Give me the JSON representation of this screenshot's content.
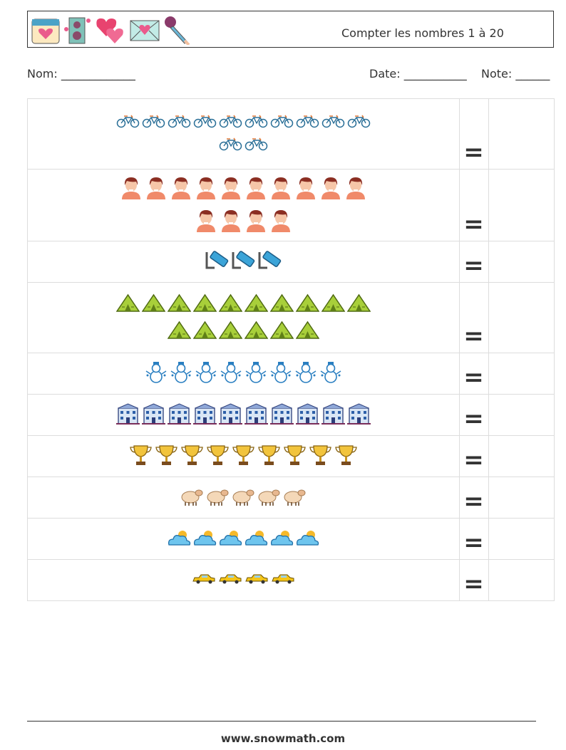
{
  "header": {
    "title": "Compter les nombres 1 à 20",
    "icons": [
      "calendar-heart-icon",
      "speaker-icon",
      "hearts-icon",
      "love-letter-icon",
      "microphone-icon"
    ]
  },
  "meta": {
    "name_label": "Nom: _____________",
    "date_label": "Date: ___________",
    "note_label": "Note: ______"
  },
  "rows": [
    {
      "icon": "bicycle",
      "count": 12,
      "per_line": 10,
      "equals": "="
    },
    {
      "icon": "person",
      "count": 14,
      "per_line": 10,
      "equals": "="
    },
    {
      "icon": "marker",
      "count": 3,
      "per_line": 10,
      "equals": "="
    },
    {
      "icon": "tent",
      "count": 16,
      "per_line": 10,
      "equals": "="
    },
    {
      "icon": "snowman",
      "count": 8,
      "per_line": 10,
      "equals": "="
    },
    {
      "icon": "building",
      "count": 10,
      "per_line": 10,
      "equals": "="
    },
    {
      "icon": "trophy",
      "count": 9,
      "per_line": 10,
      "equals": "="
    },
    {
      "icon": "sheep",
      "count": 5,
      "per_line": 10,
      "equals": "="
    },
    {
      "icon": "cloud-sun",
      "count": 6,
      "per_line": 10,
      "equals": "="
    },
    {
      "icon": "car",
      "count": 4,
      "per_line": 10,
      "equals": "="
    }
  ],
  "footer": {
    "url": "www.snowmath.com"
  }
}
